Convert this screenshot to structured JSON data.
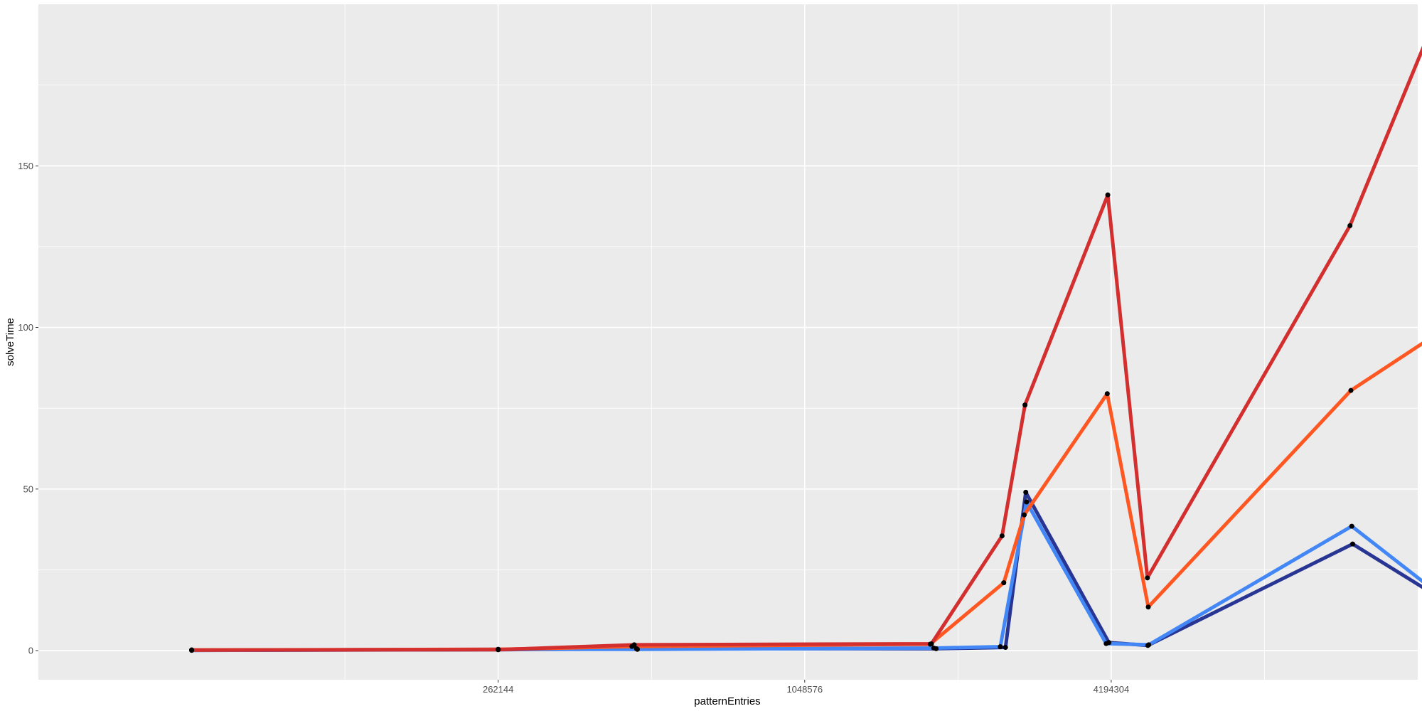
{
  "chart_data": {
    "type": "line",
    "xlabel": "patternEntries",
    "ylabel": "solveTime",
    "x_scale": "log2",
    "xlim": [
      32768,
      16777216
    ],
    "ylim": [
      -9,
      200
    ],
    "x_ticks": [
      {
        "value": 262144,
        "label": "262144"
      },
      {
        "value": 1048576,
        "label": "1048576"
      },
      {
        "value": 4194304,
        "label": "4194304"
      }
    ],
    "x_minor_ticks": [
      131072,
      524288,
      2097152,
      8388608
    ],
    "y_ticks": [
      {
        "value": 0,
        "label": "0"
      },
      {
        "value": 50,
        "label": "50"
      },
      {
        "value": 100,
        "label": "100"
      },
      {
        "value": 150,
        "label": "150"
      }
    ],
    "y_minor_ticks": [
      25,
      75,
      125,
      175
    ],
    "grid": true,
    "legend": "none",
    "panel_background": "#ebebeb",
    "series": [
      {
        "color": "#283593",
        "points": [
          [
            65536,
            0.1
          ],
          [
            262144,
            0.3
          ],
          [
            490000,
            0.6
          ],
          [
            1900000,
            0.6
          ],
          [
            2600000,
            1.0
          ],
          [
            2850000,
            49
          ],
          [
            4150000,
            2.5
          ],
          [
            4950000,
            1.6
          ],
          [
            12500000,
            33
          ],
          [
            17400000,
            19
          ]
        ]
      },
      {
        "color": "#4287f5",
        "points": [
          [
            65536,
            0.1
          ],
          [
            262144,
            0.4
          ],
          [
            492000,
            0.4
          ],
          [
            1880000,
            0.8
          ],
          [
            2540000,
            1.2
          ],
          [
            2860000,
            46
          ],
          [
            4100000,
            2.2
          ],
          [
            4970000,
            1.8
          ],
          [
            12450000,
            38.5
          ],
          [
            17450000,
            20.5
          ]
        ]
      },
      {
        "color": "#ff5722",
        "points": [
          [
            65536,
            0.2
          ],
          [
            262144,
            0.4
          ],
          [
            480000,
            1.3
          ],
          [
            1850000,
            2.0
          ],
          [
            2580000,
            21
          ],
          [
            2830000,
            42
          ],
          [
            4120000,
            79.5
          ],
          [
            4960000,
            13.5
          ],
          [
            12400000,
            80.5
          ],
          [
            17500000,
            96
          ]
        ]
      },
      {
        "color": "#d32f2f",
        "points": [
          [
            65536,
            0.2
          ],
          [
            262144,
            0.3
          ],
          [
            485000,
            1.8
          ],
          [
            1860000,
            2.1
          ],
          [
            2560000,
            35.5
          ],
          [
            2840000,
            76
          ],
          [
            4130000,
            141
          ],
          [
            4940000,
            22.5
          ],
          [
            12350000,
            131.5
          ],
          [
            17550000,
            190
          ]
        ]
      }
    ]
  }
}
